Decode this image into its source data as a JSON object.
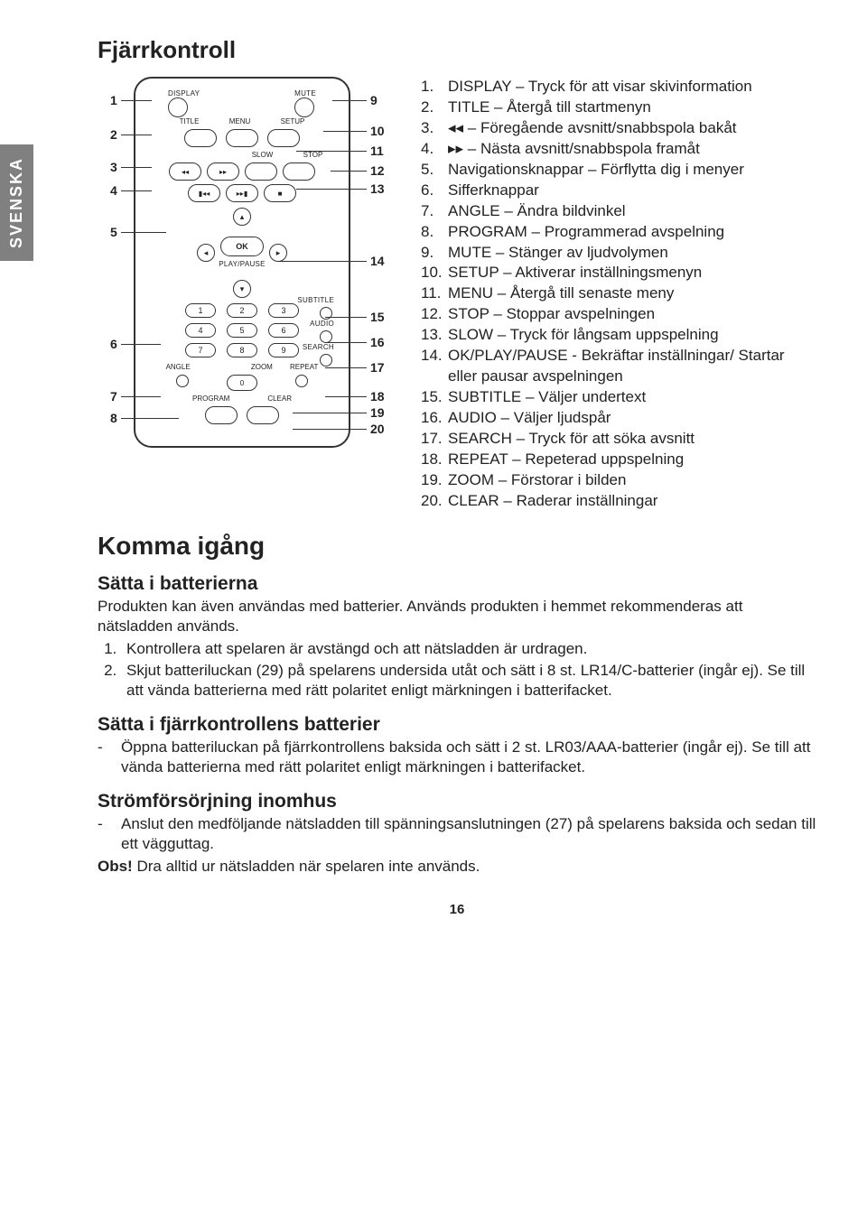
{
  "sidebar": {
    "language": "SVENSKA"
  },
  "title": "Fjärrkontroll",
  "remote": {
    "top_left_label": "DISPLAY",
    "top_right_label": "MUTE",
    "row2_labels": [
      "TITLE",
      "MENU",
      "SETUP"
    ],
    "row3_labels": [
      "SLOW",
      "STOP"
    ],
    "row3_left_icons": [
      "◂◂",
      "▸▸"
    ],
    "row4_icons": [
      "▮◂◂",
      "▸▸▮",
      "■"
    ],
    "ok_label": "OK",
    "playpause_label": "PLAY/PAUSE",
    "subtitle_label": "SUBTITLE",
    "audio_label": "AUDIO",
    "search_label": "SEARCH",
    "num_labels": [
      "1",
      "2",
      "3",
      "4",
      "5",
      "6",
      "7",
      "8",
      "9",
      "0"
    ],
    "angle_label": "ANGLE",
    "zoom_label": "ZOOM",
    "repeat_label": "REPEAT",
    "program_label": "PROGRAM",
    "clear_label": "CLEAR",
    "left_callouts": [
      "1",
      "2",
      "3",
      "4",
      "5",
      "6",
      "7",
      "8"
    ],
    "right_callouts": [
      "9",
      "10",
      "11",
      "12",
      "13",
      "14",
      "15",
      "16",
      "17",
      "18",
      "19",
      "20"
    ]
  },
  "descriptions": [
    {
      "n": "1.",
      "t": "DISPLAY – Tryck för att visar skivinformation"
    },
    {
      "n": "2.",
      "t": "TITLE – Återgå till startmenyn"
    },
    {
      "n": "3.",
      "t": "◂◂ – Föregående avsnitt/snabbspola bakåt"
    },
    {
      "n": "4.",
      "t": "▸▸ – Nästa avsnitt/snabbspola framåt"
    },
    {
      "n": "5.",
      "t": "Navigationsknappar – Förflytta dig i menyer"
    },
    {
      "n": "6.",
      "t": "Sifferknappar"
    },
    {
      "n": "7.",
      "t": "ANGLE – Ändra bildvinkel"
    },
    {
      "n": "8.",
      "t": "PROGRAM – Programmerad avspelning"
    },
    {
      "n": "9.",
      "t": "MUTE – Stänger av ljudvolymen"
    },
    {
      "n": "10.",
      "t": "SETUP – Aktiverar inställningsmenyn"
    },
    {
      "n": "11.",
      "t": "MENU – Återgå till senaste meny"
    },
    {
      "n": "12.",
      "t": "STOP – Stoppar avspelningen"
    },
    {
      "n": "13.",
      "t": "SLOW – Tryck för långsam uppspelning"
    },
    {
      "n": "14.",
      "t": "OK/PLAY/PAUSE - Bekräftar inställningar/ Startar eller pausar avspelningen"
    },
    {
      "n": "15.",
      "t": "SUBTITLE – Väljer undertext"
    },
    {
      "n": "16.",
      "t": "AUDIO – Väljer ljudspår"
    },
    {
      "n": "17.",
      "t": "SEARCH – Tryck för att söka avsnitt"
    },
    {
      "n": "18.",
      "t": "REPEAT – Repeterad uppspelning"
    },
    {
      "n": "19.",
      "t": "ZOOM – Förstorar i bilden"
    },
    {
      "n": "20.",
      "t": "CLEAR – Raderar inställningar"
    }
  ],
  "section2_title": "Komma igång",
  "batt_heading": "Sätta i batterierna",
  "batt_intro": "Produkten kan även användas med batterier. Används produkten i hemmet rekommenderas att nätsladden används.",
  "batt_steps": [
    "Kontrollera att spelaren är avstängd och att nätsladden är urdragen.",
    "Skjut batteriluckan (29) på spelarens undersida utåt och sätt i 8 st. LR14/C-batterier (ingår ej). Se till att vända batterierna med rätt polaritet enligt märkningen i batterifacket."
  ],
  "remote_batt_heading": "Sätta i fjärrkontrollens batterier",
  "remote_batt_text": "Öppna batteriluckan på fjärrkontrollens baksida och sätt i 2 st. LR03/AAA-batterier (ingår ej). Se till att vända batterierna med rätt polaritet enligt märkningen i batterifacket.",
  "power_heading": "Strömförsörjning inomhus",
  "power_text": "Anslut den medföljande nätsladden till spänningsanslutningen (27) på spelarens baksida och sedan till ett vägguttag.",
  "power_note_bold": "Obs!",
  "power_note_rest": " Dra alltid ur nätsladden när spelaren inte används.",
  "page_number": "16"
}
